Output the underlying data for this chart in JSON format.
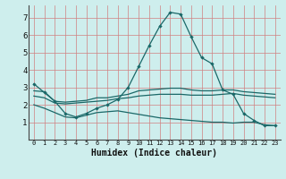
{
  "xlabel": "Humidex (Indice chaleur)",
  "bg_color": "#ceeeed",
  "grid_color": "#d08080",
  "line_color": "#1a6868",
  "xlim": [
    -0.5,
    23.5
  ],
  "ylim": [
    0,
    7.7
  ],
  "xticks": [
    0,
    1,
    2,
    3,
    4,
    5,
    6,
    7,
    8,
    9,
    10,
    11,
    12,
    13,
    14,
    15,
    16,
    17,
    18,
    19,
    20,
    21,
    22,
    23
  ],
  "yticks": [
    1,
    2,
    3,
    4,
    5,
    6,
    7
  ],
  "hours": [
    0,
    1,
    2,
    3,
    4,
    5,
    6,
    7,
    8,
    9,
    10,
    11,
    12,
    13,
    14,
    15,
    16,
    17,
    18,
    19,
    20,
    21,
    22,
    23
  ],
  "line_peak": [
    3.2,
    2.7,
    2.2,
    1.5,
    1.3,
    1.5,
    1.8,
    2.0,
    2.3,
    3.0,
    4.2,
    5.4,
    6.5,
    7.3,
    7.2,
    5.9,
    4.7,
    4.35,
    2.85,
    2.6,
    1.5,
    1.1,
    0.8,
    0.8
  ],
  "line_hi": [
    2.8,
    2.75,
    2.2,
    2.15,
    2.2,
    2.25,
    2.4,
    2.4,
    2.5,
    2.6,
    2.8,
    2.85,
    2.9,
    2.95,
    2.95,
    2.85,
    2.8,
    2.8,
    2.85,
    2.85,
    2.75,
    2.7,
    2.65,
    2.6
  ],
  "line_lo": [
    2.5,
    2.4,
    2.1,
    2.05,
    2.1,
    2.15,
    2.2,
    2.25,
    2.35,
    2.4,
    2.5,
    2.55,
    2.6,
    2.6,
    2.6,
    2.55,
    2.55,
    2.55,
    2.6,
    2.65,
    2.55,
    2.5,
    2.45,
    2.4
  ],
  "line_bot": [
    2.0,
    1.8,
    1.55,
    1.3,
    1.25,
    1.4,
    1.55,
    1.6,
    1.65,
    1.55,
    1.45,
    1.35,
    1.25,
    1.2,
    1.15,
    1.1,
    1.05,
    1.0,
    1.0,
    0.95,
    1.0,
    1.0,
    0.85,
    0.8
  ]
}
